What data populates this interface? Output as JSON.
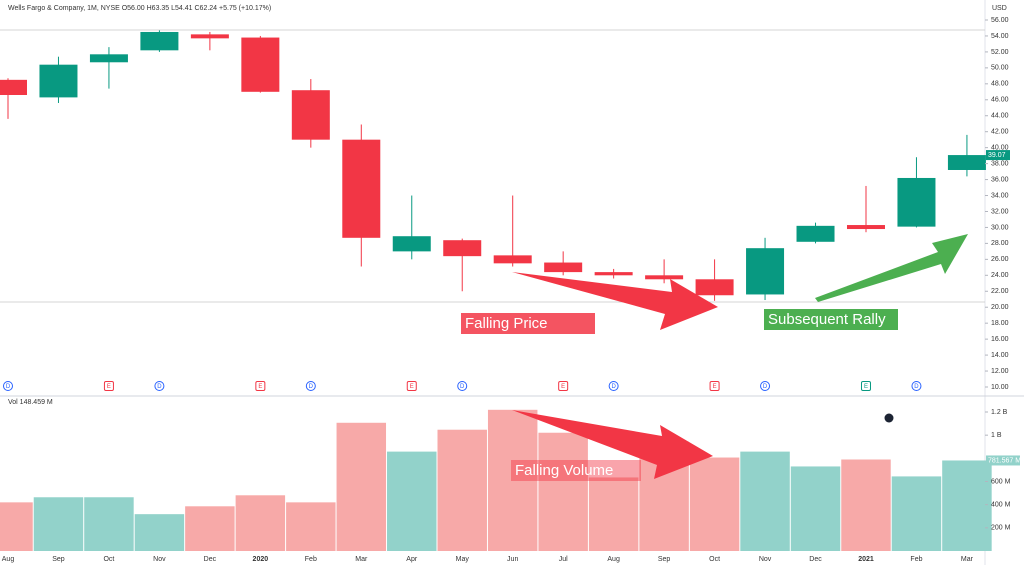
{
  "chart_data": {
    "type": "candlestick",
    "header": "Wells Fargo & Company, 1M, NYSE  O56.00  H63.35  L54.41  C62.24  +5.75 (+10.17%)",
    "currency": "USD",
    "volume_header": "Vol  148.459 M",
    "categories": [
      "Aug",
      "Sep",
      "Oct",
      "Nov",
      "Dec",
      "2020",
      "Feb",
      "Mar",
      "Apr",
      "May",
      "Jun",
      "Jul",
      "Aug",
      "Sep",
      "Oct",
      "Nov",
      "Dec",
      "2021",
      "Feb",
      "Mar"
    ],
    "open": [
      48.5,
      46.3,
      50.7,
      52.2,
      54.2,
      53.8,
      47.2,
      41.0,
      27.0,
      28.4,
      26.5,
      25.6,
      24.4,
      24.0,
      23.5,
      21.6,
      28.2,
      30.3,
      30.1,
      37.2
    ],
    "high": [
      48.7,
      51.4,
      52.6,
      54.7,
      54.5,
      54.0,
      48.6,
      42.9,
      34.0,
      28.6,
      34.0,
      27.0,
      24.8,
      26.0,
      26.0,
      28.7,
      30.6,
      35.2,
      38.8,
      41.6
    ],
    "low": [
      43.6,
      45.6,
      47.4,
      52.0,
      52.2,
      46.9,
      40.0,
      25.1,
      26.0,
      22.0,
      25.1,
      24.0,
      23.6,
      23.0,
      20.8,
      20.9,
      28.0,
      29.4,
      30.0,
      36.4
    ],
    "close": [
      46.6,
      50.4,
      51.7,
      54.5,
      53.7,
      47.0,
      41.0,
      28.7,
      28.9,
      26.4,
      25.5,
      24.4,
      24.0,
      23.5,
      21.5,
      27.4,
      30.2,
      29.8,
      36.2,
      39.07
    ],
    "volume": [
      420,
      464,
      464,
      318,
      386,
      481,
      420,
      1107,
      858,
      1047,
      1219,
      1021,
      635,
      944,
      807,
      858,
      730,
      790,
      644,
      781.567
    ],
    "volume_value_labels": [
      null,
      null,
      null,
      null,
      null,
      null,
      null,
      null,
      null,
      null,
      null,
      null,
      null,
      null,
      null,
      null,
      null,
      null,
      null,
      "781.567 M"
    ],
    "up_color": "#089981",
    "down_color": "#f23645",
    "volume_up_color": "#92d2ca",
    "volume_down_color": "#f7a9a8",
    "ylim": [
      10,
      56
    ],
    "yticks": [
      {
        "value": 56,
        "label": "56.00"
      },
      {
        "value": 54,
        "label": "54.00"
      },
      {
        "value": 52,
        "label": "52.00"
      },
      {
        "value": 50,
        "label": "50.00"
      },
      {
        "value": 48,
        "label": "48.00"
      },
      {
        "value": 46,
        "label": "46.00"
      },
      {
        "value": 44,
        "label": "44.00"
      },
      {
        "value": 42,
        "label": "42.00"
      },
      {
        "value": 40,
        "label": "40.00"
      },
      {
        "value": 38,
        "label": "38.00"
      },
      {
        "value": 36,
        "label": "36.00"
      },
      {
        "value": 34,
        "label": "34.00"
      },
      {
        "value": 32,
        "label": "32.00"
      },
      {
        "value": 30,
        "label": "30.00"
      },
      {
        "value": 28,
        "label": "28.00"
      },
      {
        "value": 26,
        "label": "26.00"
      },
      {
        "value": 24,
        "label": "24.00"
      },
      {
        "value": 22,
        "label": "22.00"
      },
      {
        "value": 20,
        "label": "20.00"
      },
      {
        "value": 18,
        "label": "18.00"
      },
      {
        "value": 16,
        "label": "16.00"
      },
      {
        "value": 14,
        "label": "14.00"
      },
      {
        "value": 12,
        "label": "12.00"
      },
      {
        "value": 10,
        "label": "10.00"
      }
    ],
    "volume_ylim": [
      0,
      1200
    ],
    "volume_yticks": [
      {
        "value": 1200,
        "label": "1.2 B"
      },
      {
        "value": 1000,
        "label": "1 B"
      },
      {
        "value": 600,
        "label": "600 M"
      },
      {
        "value": 400,
        "label": "400 M"
      },
      {
        "value": 200,
        "label": "200 M"
      }
    ],
    "events": [
      "D",
      "E",
      "D",
      "E",
      "D",
      "E",
      "D",
      "E",
      "D",
      "E",
      "D",
      "E",
      "D"
    ],
    "annotations": {
      "falling_price": "Falling Price",
      "subsequent_rally": "Subsequent Rally",
      "falling_volume": "Falling Volume"
    }
  }
}
